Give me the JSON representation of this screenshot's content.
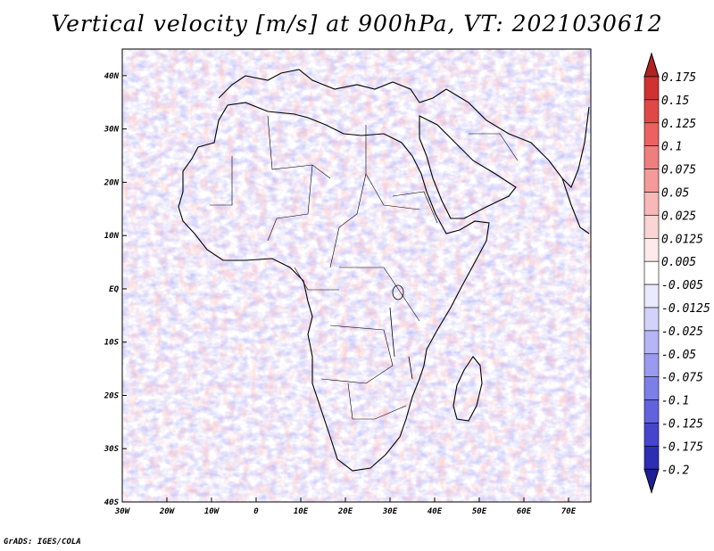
{
  "title": "Vertical velocity [m/s] at 900hPa, VT: 2021030612",
  "credit": "GrADS: IGES/COLA",
  "map": {
    "lon_labels": [
      "30W",
      "20W",
      "10W",
      "0",
      "10E",
      "20E",
      "30E",
      "40E",
      "50E",
      "60E",
      "70E"
    ],
    "lat_labels": [
      "40N",
      "30N",
      "20N",
      "10N",
      "EQ",
      "10S",
      "20S",
      "30S",
      "40S"
    ],
    "lon_range": [
      -30,
      75
    ],
    "lat_range": [
      -40,
      45
    ]
  },
  "colorbar": {
    "labels": [
      "0.175",
      "0.15",
      "0.125",
      "0.1",
      "0.075",
      "0.05",
      "0.025",
      "0.0125",
      "0.005",
      "-0.005",
      "-0.0125",
      "-0.025",
      "-0.05",
      "-0.075",
      "-0.1",
      "-0.125",
      "-0.175",
      "-0.2"
    ],
    "colors": [
      "#b22222",
      "#d03232",
      "#e04848",
      "#ec6262",
      "#f07e7e",
      "#f49a9a",
      "#f8b8b8",
      "#fbd4d4",
      "#fdeaea",
      "#ffffff",
      "#eaeaff",
      "#d2d2fb",
      "#b6b6f6",
      "#9a9af0",
      "#7e7ee8",
      "#6262de",
      "#4646cc",
      "#2e2eb2",
      "#1e1e96"
    ]
  }
}
